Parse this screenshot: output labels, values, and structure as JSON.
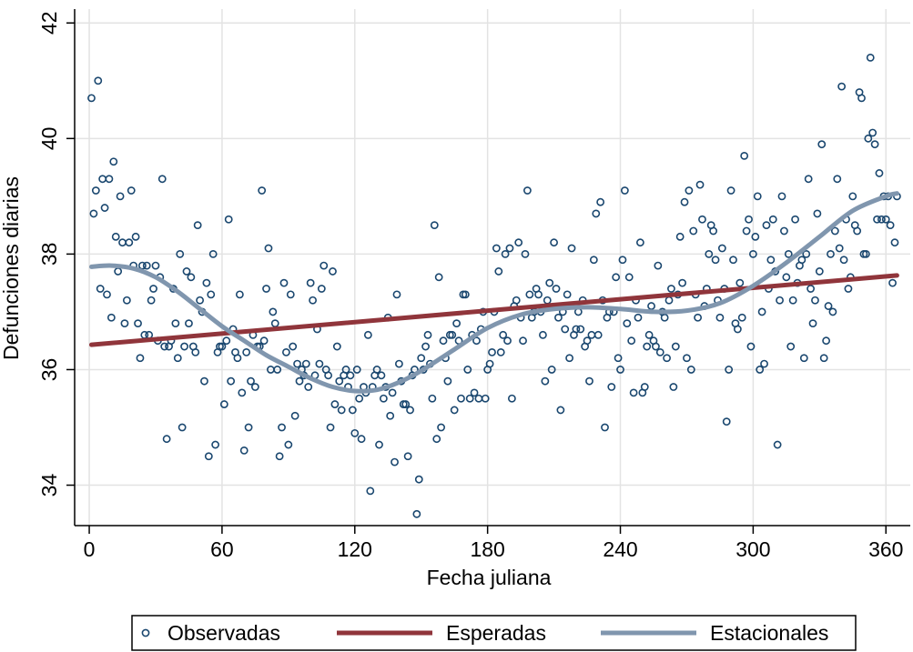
{
  "chart_data": {
    "type": "scatter",
    "xlabel": "Fecha juliana",
    "ylabel": "Defunciones diarias",
    "xlim": [
      -6.6,
      371
    ],
    "ylim": [
      33.3,
      42.24
    ],
    "xticks": [
      0,
      60,
      120,
      180,
      240,
      300,
      360
    ],
    "yticks": [
      34,
      36,
      38,
      40,
      42
    ],
    "grid": true,
    "legend": "bottom",
    "series": [
      {
        "name": "Observadas",
        "type": "scatter",
        "color": "#1a476f",
        "x": [
          1,
          2,
          3,
          4,
          5,
          6,
          7,
          8,
          9,
          10,
          11,
          12,
          13,
          14,
          15,
          16,
          17,
          18,
          19,
          20,
          21,
          22,
          23,
          24,
          25,
          26,
          27,
          28,
          29,
          30,
          31,
          32,
          33,
          34,
          35,
          36,
          37,
          38,
          39,
          40,
          41,
          42,
          43,
          44,
          45,
          46,
          47,
          48,
          49,
          50,
          51,
          52,
          53,
          54,
          55,
          56,
          57,
          58,
          59,
          60,
          61,
          62,
          63,
          64,
          65,
          66,
          67,
          68,
          69,
          70,
          71,
          72,
          73,
          74,
          75,
          76,
          77,
          78,
          79,
          80,
          81,
          82,
          83,
          84,
          85,
          86,
          87,
          88,
          89,
          90,
          91,
          92,
          93,
          94,
          95,
          96,
          97,
          98,
          99,
          100,
          101,
          102,
          103,
          104,
          105,
          106,
          107,
          108,
          109,
          110,
          111,
          112,
          113,
          114,
          115,
          116,
          117,
          118,
          119,
          120,
          121,
          122,
          123,
          124,
          125,
          126,
          127,
          128,
          129,
          130,
          131,
          132,
          133,
          134,
          135,
          136,
          137,
          138,
          139,
          140,
          141,
          142,
          143,
          144,
          145,
          146,
          147,
          148,
          149,
          150,
          151,
          152,
          153,
          154,
          155,
          156,
          157,
          158,
          159,
          160,
          161,
          162,
          163,
          164,
          165,
          166,
          167,
          168,
          169,
          170,
          171,
          172,
          173,
          174,
          175,
          176,
          177,
          178,
          179,
          180,
          181,
          182,
          183,
          184,
          185,
          186,
          187,
          188,
          189,
          190,
          191,
          192,
          193,
          194,
          195,
          196,
          197,
          198,
          199,
          200,
          201,
          202,
          203,
          204,
          205,
          206,
          207,
          208,
          209,
          210,
          211,
          212,
          213,
          214,
          215,
          216,
          217,
          218,
          219,
          220,
          221,
          222,
          223,
          224,
          225,
          226,
          227,
          228,
          229,
          230,
          231,
          232,
          233,
          234,
          235,
          236,
          237,
          238,
          239,
          240,
          241,
          242,
          243,
          244,
          245,
          246,
          247,
          248,
          249,
          250,
          251,
          252,
          253,
          254,
          255,
          256,
          257,
          258,
          259,
          260,
          261,
          262,
          263,
          264,
          265,
          266,
          267,
          268,
          269,
          270,
          271,
          272,
          273,
          274,
          275,
          276,
          277,
          278,
          279,
          280,
          281,
          282,
          283,
          284,
          285,
          286,
          287,
          288,
          289,
          290,
          291,
          292,
          293,
          294,
          295,
          296,
          297,
          298,
          299,
          300,
          301,
          302,
          303,
          304,
          305,
          306,
          307,
          308,
          309,
          310,
          311,
          312,
          313,
          314,
          315,
          316,
          317,
          318,
          319,
          320,
          321,
          322,
          323,
          324,
          325,
          326,
          327,
          328,
          329,
          330,
          331,
          332,
          333,
          334,
          335,
          336,
          337,
          338,
          339,
          340,
          341,
          342,
          343,
          344,
          345,
          346,
          347,
          348,
          349,
          350,
          351,
          352,
          353,
          354,
          355,
          356,
          357,
          358,
          359,
          360,
          361,
          362,
          363,
          364,
          365
        ],
        "values": [
          40.7,
          38.7,
          39.1,
          41.0,
          37.4,
          39.3,
          38.8,
          37.3,
          39.3,
          36.9,
          39.6,
          38.3,
          37.7,
          39.0,
          38.2,
          36.8,
          37.2,
          38.2,
          39.1,
          37.8,
          38.3,
          36.8,
          36.2,
          37.8,
          36.6,
          37.8,
          36.6,
          37.2,
          37.4,
          37.8,
          36.5,
          37.6,
          39.3,
          36.4,
          34.8,
          36.4,
          36.5,
          37.4,
          36.8,
          36.2,
          38.0,
          35.0,
          36.4,
          37.7,
          36.8,
          37.6,
          36.4,
          36.3,
          38.5,
          37.2,
          37.0,
          35.8,
          37.5,
          34.5,
          37.3,
          38.0,
          34.7,
          36.3,
          36.4,
          36.4,
          35.4,
          36.5,
          38.6,
          35.8,
          36.7,
          36.3,
          36.2,
          37.3,
          35.6,
          34.6,
          36.3,
          35.0,
          35.8,
          36.6,
          35.7,
          36.4,
          36.4,
          39.1,
          36.5,
          37.4,
          38.1,
          36.0,
          37.0,
          36.8,
          36.0,
          34.5,
          35.0,
          37.5,
          36.3,
          34.7,
          37.3,
          36.4,
          35.2,
          36.1,
          35.8,
          36.0,
          35.9,
          36.1,
          35.7,
          37.5,
          37.2,
          35.9,
          36.7,
          36.1,
          37.4,
          37.8,
          36.0,
          35.9,
          35.0,
          37.7,
          35.4,
          36.4,
          35.8,
          35.3,
          35.9,
          36.0,
          35.7,
          35.9,
          35.3,
          34.9,
          36.0,
          35.5,
          34.8,
          35.7,
          35.6,
          36.6,
          33.9,
          35.7,
          35.9,
          36.0,
          34.7,
          35.9,
          35.5,
          35.7,
          36.9,
          35.2,
          35.6,
          34.4,
          37.3,
          36.1,
          35.8,
          35.4,
          35.4,
          34.5,
          35.3,
          35.9,
          36.0,
          33.5,
          34.1,
          36.2,
          36.0,
          36.4,
          36.6,
          36.1,
          35.5,
          38.5,
          34.8,
          37.6,
          35.0,
          36.5,
          36.2,
          35.8,
          36.6,
          36.6,
          35.3,
          36.8,
          36.5,
          35.5,
          37.3,
          37.3,
          36.0,
          35.5,
          36.6,
          35.6,
          36.5,
          35.5,
          36.7,
          37.0,
          35.5,
          36.0,
          36.1,
          36.3,
          37.0,
          38.1,
          37.7,
          36.3,
          36.6,
          38.0,
          36.5,
          38.1,
          35.5,
          37.1,
          37.2,
          38.2,
          36.9,
          36.5,
          38.0,
          39.1,
          37.3,
          36.9,
          37.0,
          37.4,
          37.3,
          37.0,
          36.6,
          35.8,
          37.2,
          37.5,
          36.0,
          38.2,
          37.4,
          36.9,
          35.3,
          37.0,
          36.7,
          37.3,
          36.2,
          38.1,
          36.6,
          36.7,
          37.0,
          36.7,
          37.2,
          36.4,
          36.5,
          35.8,
          36.6,
          37.9,
          38.7,
          36.6,
          38.9,
          37.2,
          35.0,
          36.9,
          37.0,
          35.7,
          37.0,
          37.6,
          36.2,
          36.0,
          37.9,
          39.1,
          36.8,
          37.6,
          36.5,
          35.6,
          37.2,
          36.9,
          38.2,
          35.6,
          35.7,
          36.4,
          36.6,
          37.1,
          36.5,
          36.4,
          37.8,
          36.3,
          37.0,
          36.9,
          36.2,
          37.2,
          37.4,
          35.7,
          36.4,
          37.3,
          38.3,
          37.5,
          38.9,
          36.2,
          39.1,
          36.0,
          38.4,
          37.3,
          36.9,
          39.2,
          38.6,
          37.1,
          37.4,
          38.0,
          38.5,
          38.4,
          37.9,
          37.2,
          36.9,
          38.1,
          37.4,
          35.1,
          36.0,
          39.1,
          37.9,
          36.8,
          36.7,
          37.5,
          36.9,
          39.7,
          38.4,
          38.6,
          36.4,
          38.0,
          38.3,
          39.0,
          36.0,
          37.0,
          36.1,
          38.5,
          37.4,
          37.9,
          38.6,
          37.7,
          34.7,
          37.2,
          39.0,
          38.4,
          37.6,
          38.0,
          36.4,
          37.2,
          38.6,
          37.5,
          37.8,
          37.9,
          36.2,
          38.0,
          39.3,
          37.4,
          36.8,
          37.2,
          38.7,
          37.7,
          39.9,
          36.2,
          36.5,
          37.1,
          38.0,
          37.0,
          38.4,
          39.3,
          38.1,
          40.9,
          37.9,
          38.6,
          37.4,
          37.6,
          39.0,
          38.5,
          38.4,
          40.8,
          40.7,
          38.0,
          38.0,
          40.0,
          41.4,
          40.1,
          39.9,
          38.6,
          39.4,
          38.6,
          39.0,
          38.6,
          39.0,
          38.5,
          37.5,
          38.2,
          39.0
        ]
      },
      {
        "name": "Esperadas",
        "type": "line",
        "color": "#90353b",
        "x": [
          1,
          365
        ],
        "values": [
          36.43,
          37.63
        ]
      },
      {
        "name": "Estacionales",
        "type": "line",
        "color": "#8096ae",
        "x": [
          1,
          10,
          20,
          30,
          40,
          50,
          60,
          70,
          80,
          90,
          100,
          110,
          120,
          130,
          140,
          150,
          165,
          180,
          195,
          210,
          225,
          240,
          255,
          270,
          285,
          300,
          315,
          330,
          345,
          360,
          365
        ],
        "values": [
          37.78,
          37.8,
          37.75,
          37.6,
          37.35,
          37.05,
          36.75,
          36.5,
          36.25,
          36.05,
          35.85,
          35.7,
          35.63,
          35.65,
          35.78,
          35.98,
          36.35,
          36.72,
          36.95,
          37.05,
          37.08,
          37.05,
          37.0,
          37.02,
          37.15,
          37.45,
          37.85,
          38.3,
          38.75,
          39.0,
          39.05
        ]
      }
    ]
  }
}
